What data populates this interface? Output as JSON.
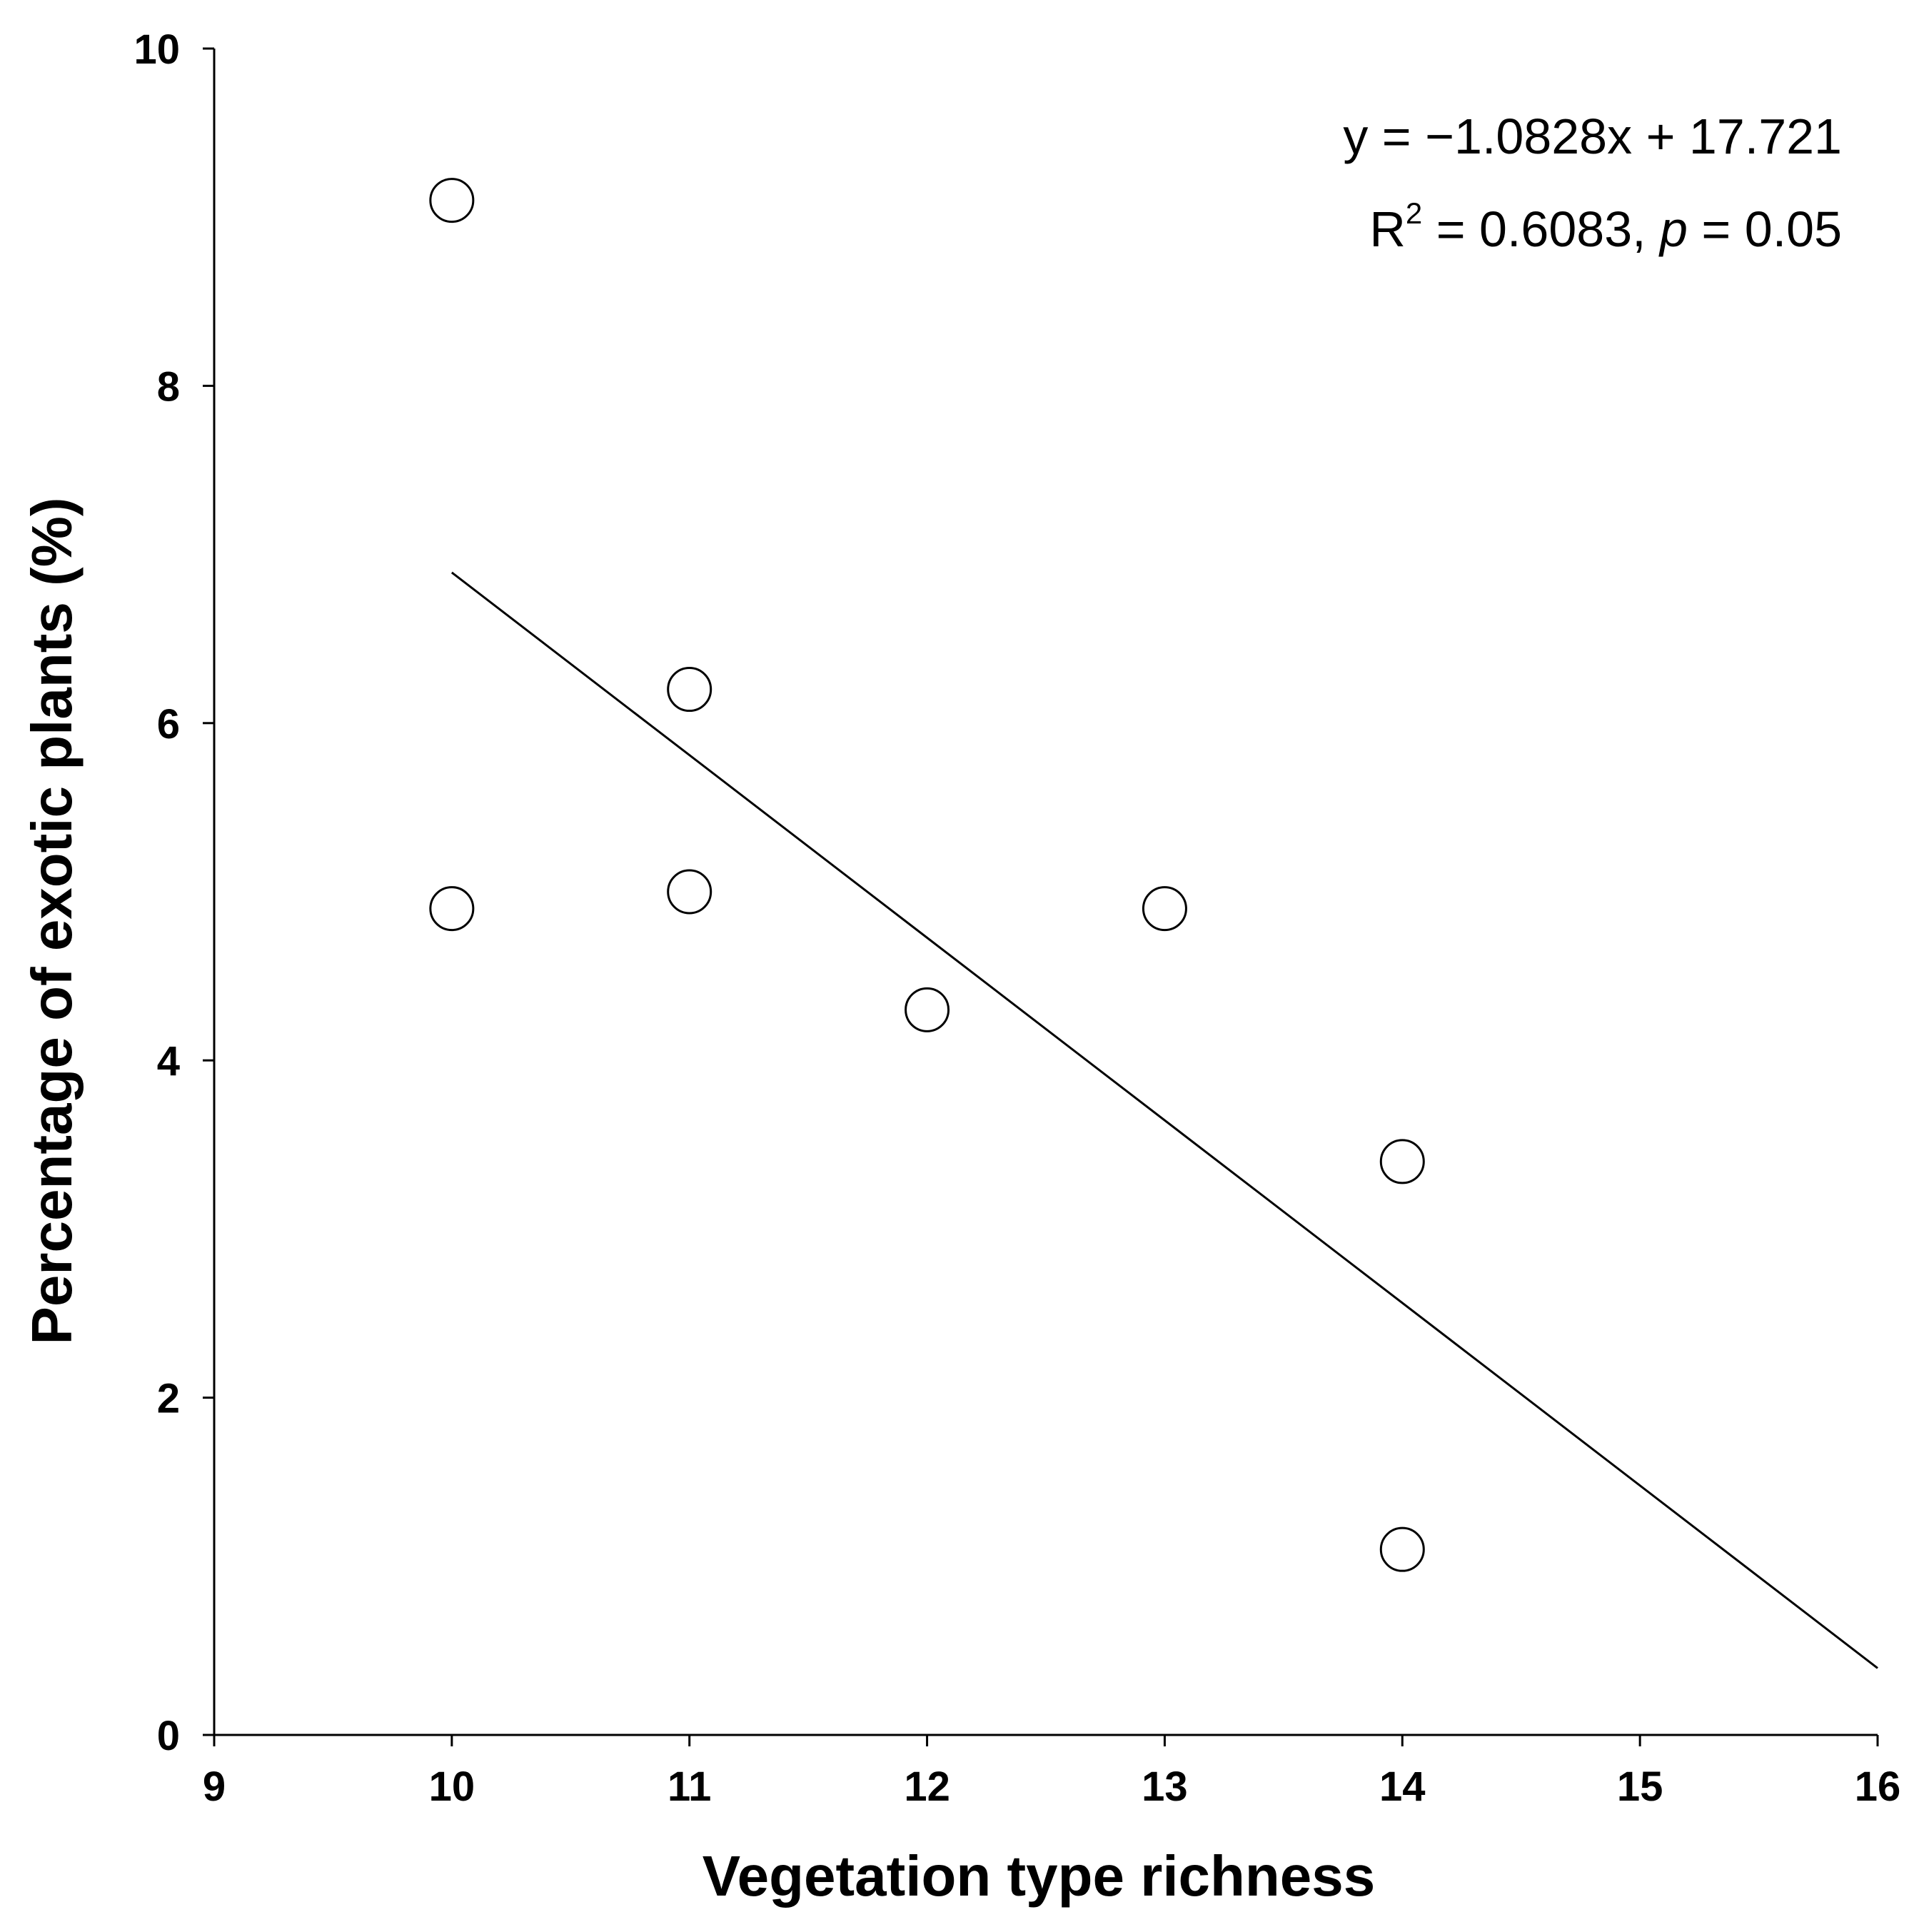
{
  "chart_data": {
    "type": "scatter",
    "xlabel": "Vegetation type richness",
    "ylabel": "Percentage of exotic plants (%)",
    "xlim": [
      9,
      16
    ],
    "ylim": [
      0,
      10
    ],
    "xticks": [
      "9",
      "10",
      "11",
      "12",
      "13",
      "14",
      "15",
      "16"
    ],
    "yticks": [
      "0",
      "2",
      "4",
      "6",
      "8",
      "10"
    ],
    "grid": false,
    "legend": "none",
    "points": [
      {
        "x": 10,
        "y": 9.1
      },
      {
        "x": 10,
        "y": 4.9
      },
      {
        "x": 11,
        "y": 6.2
      },
      {
        "x": 11,
        "y": 5.0
      },
      {
        "x": 12,
        "y": 4.3
      },
      {
        "x": 13,
        "y": 4.9
      },
      {
        "x": 14,
        "y": 3.4
      },
      {
        "x": 14,
        "y": 1.1
      }
    ],
    "trendline": {
      "slope": -1.0828,
      "intercept": 17.721,
      "x_range": [
        10,
        16
      ]
    },
    "annotations": {
      "equation": "y = −1.0828x + 17.721",
      "r_label": "R",
      "r_sup": "2",
      "r_value": " = 0.6083, ",
      "p_symbol": "p",
      "p_value": " = 0.05"
    },
    "colors": {
      "axis": "#000000",
      "marker_fill": "#ffffff",
      "marker_stroke": "#000000",
      "line": "#000000"
    }
  }
}
